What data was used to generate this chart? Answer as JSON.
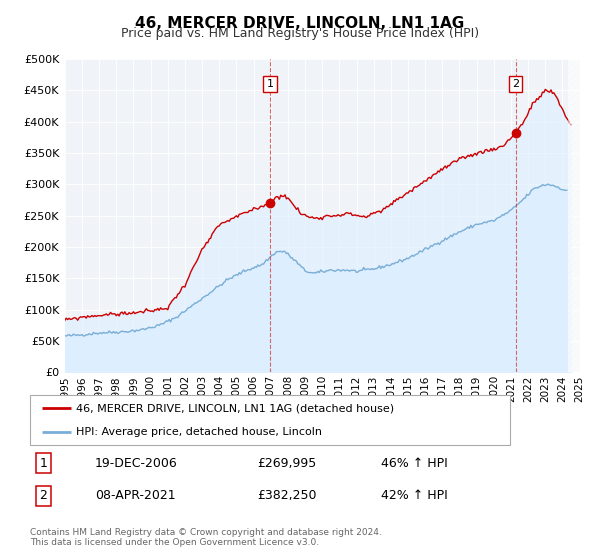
{
  "title": "46, MERCER DRIVE, LINCOLN, LN1 1AG",
  "subtitle": "Price paid vs. HM Land Registry's House Price Index (HPI)",
  "legend_entry1": "46, MERCER DRIVE, LINCOLN, LN1 1AG (detached house)",
  "legend_entry2": "HPI: Average price, detached house, Lincoln",
  "marker1_text": "19-DEC-2006",
  "marker1_price_text": "£269,995",
  "marker1_hpi_text": "46% ↑ HPI",
  "marker1_x": 2006.96,
  "marker1_y": 269995,
  "marker2_text": "08-APR-2021",
  "marker2_price_text": "£382,250",
  "marker2_hpi_text": "42% ↑ HPI",
  "marker2_x": 2021.27,
  "marker2_y": 382250,
  "red_color": "#cc0000",
  "blue_color": "#7aaed6",
  "fill_color": "#ddeeff",
  "plot_bg": "#f0f4f8",
  "grid_color": "#ffffff",
  "xmin": 1995.0,
  "xmax": 2025.0,
  "ymin": 0,
  "ymax": 500000,
  "yticks": [
    0,
    50000,
    100000,
    150000,
    200000,
    250000,
    300000,
    350000,
    400000,
    450000,
    500000
  ],
  "footer_line1": "Contains HM Land Registry data © Crown copyright and database right 2024.",
  "footer_line2": "This data is licensed under the Open Government Licence v3.0.",
  "hpi_anchors": [
    [
      1995.0,
      58000
    ],
    [
      1996.0,
      60000
    ],
    [
      1997.0,
      63000
    ],
    [
      1998.5,
      65000
    ],
    [
      1999.5,
      68000
    ],
    [
      2000.5,
      75000
    ],
    [
      2001.5,
      88000
    ],
    [
      2002.5,
      108000
    ],
    [
      2003.5,
      128000
    ],
    [
      2004.5,
      148000
    ],
    [
      2005.5,
      162000
    ],
    [
      2006.5,
      172000
    ],
    [
      2007.3,
      192000
    ],
    [
      2007.8,
      193000
    ],
    [
      2008.5,
      176000
    ],
    [
      2009.0,
      162000
    ],
    [
      2009.5,
      158000
    ],
    [
      2010.5,
      163000
    ],
    [
      2011.5,
      163000
    ],
    [
      2012.0,
      161000
    ],
    [
      2013.0,
      165000
    ],
    [
      2014.0,
      172000
    ],
    [
      2015.0,
      182000
    ],
    [
      2016.0,
      196000
    ],
    [
      2017.0,
      210000
    ],
    [
      2018.0,
      224000
    ],
    [
      2019.0,
      236000
    ],
    [
      2020.0,
      242000
    ],
    [
      2021.0,
      258000
    ],
    [
      2021.8,
      278000
    ],
    [
      2022.3,
      292000
    ],
    [
      2022.8,
      298000
    ],
    [
      2023.2,
      300000
    ],
    [
      2023.8,
      295000
    ],
    [
      2024.3,
      288000
    ]
  ],
  "prop_anchors": [
    [
      1995.0,
      83000
    ],
    [
      1996.0,
      88000
    ],
    [
      1997.0,
      91000
    ],
    [
      1998.0,
      93000
    ],
    [
      1999.0,
      95000
    ],
    [
      2000.0,
      98000
    ],
    [
      2001.0,
      103000
    ],
    [
      2002.0,
      140000
    ],
    [
      2003.0,
      195000
    ],
    [
      2004.0,
      235000
    ],
    [
      2005.0,
      248000
    ],
    [
      2006.0,
      260000
    ],
    [
      2006.96,
      269995
    ],
    [
      2007.4,
      280000
    ],
    [
      2007.8,
      283000
    ],
    [
      2008.3,
      268000
    ],
    [
      2008.8,
      252000
    ],
    [
      2009.5,
      246000
    ],
    [
      2010.5,
      250000
    ],
    [
      2011.5,
      253000
    ],
    [
      2012.5,
      248000
    ],
    [
      2013.5,
      258000
    ],
    [
      2014.5,
      278000
    ],
    [
      2015.5,
      296000
    ],
    [
      2016.5,
      315000
    ],
    [
      2017.5,
      332000
    ],
    [
      2018.5,
      345000
    ],
    [
      2019.5,
      353000
    ],
    [
      2020.5,
      360000
    ],
    [
      2021.27,
      382250
    ],
    [
      2021.8,
      402000
    ],
    [
      2022.2,
      425000
    ],
    [
      2022.7,
      440000
    ],
    [
      2023.0,
      450000
    ],
    [
      2023.5,
      445000
    ],
    [
      2023.8,
      430000
    ],
    [
      2024.2,
      408000
    ],
    [
      2024.5,
      395000
    ]
  ]
}
